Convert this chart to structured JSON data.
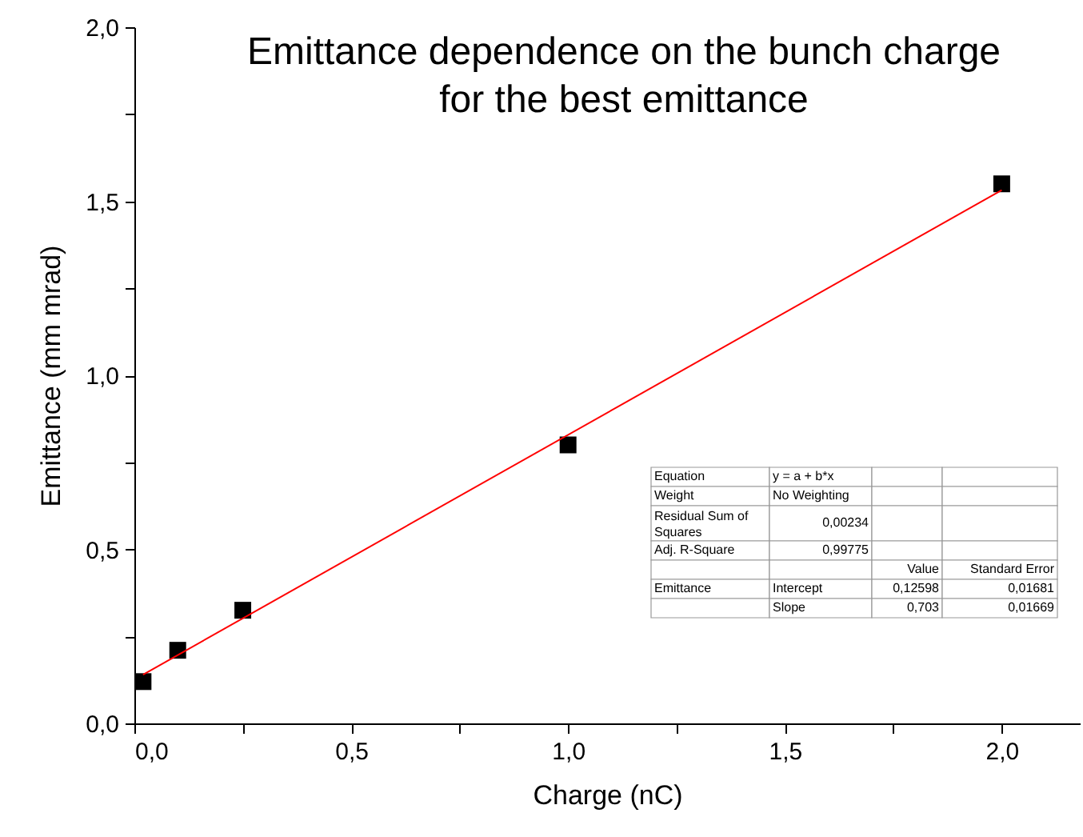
{
  "chart_data": {
    "type": "scatter",
    "title": "Emittance dependence on the bunch charge\nfor the best emittance",
    "xlabel": "Charge (nC)",
    "ylabel": "Emittance (mm mrad)",
    "series": [
      {
        "color": "#000000",
        "marker": "square",
        "x": [
          0.02,
          0.1,
          0.25,
          1.0,
          2.0
        ],
        "values": [
          0.12,
          0.21,
          0.325,
          0.8,
          1.55
        ]
      },
      {
        "type": "line",
        "color": "#ff0000",
        "line_style": "solid",
        "x": [
          0.02,
          2.0
        ],
        "values": [
          0.14,
          1.532
        ]
      }
    ],
    "xlim": [
      0,
      2.18
    ],
    "ylim": [
      0,
      2.0
    ],
    "xticks": [
      {
        "value": 0,
        "label": "0,0"
      },
      {
        "value": 0.25,
        "label": null
      },
      {
        "value": 0.5,
        "label": "0,5"
      },
      {
        "value": 0.75,
        "label": null
      },
      {
        "value": 1.0,
        "label": "1,0"
      },
      {
        "value": 1.25,
        "label": null
      },
      {
        "value": 1.5,
        "label": "1,5"
      },
      {
        "value": 1.75,
        "label": null
      },
      {
        "value": 2.0,
        "label": "2,0"
      }
    ],
    "yticks": [
      {
        "value": 0,
        "label": "0,0"
      },
      {
        "value": 0.25,
        "label": null
      },
      {
        "value": 0.5,
        "label": "0,5"
      },
      {
        "value": 0.75,
        "label": null
      },
      {
        "value": 1.0,
        "label": "1,0"
      },
      {
        "value": 1.25,
        "label": null
      },
      {
        "value": 1.5,
        "label": "1,5"
      },
      {
        "value": 1.75,
        "label": null
      },
      {
        "value": 2.0,
        "label": "2,0"
      }
    ],
    "annotations": [
      "Equation",
      "y = a + b*x",
      null,
      null,
      "Weight",
      "No Weighting",
      null,
      null,
      "Residual Sum of\nSquares",
      "0,00234",
      null,
      null,
      "Adj. R-Square",
      "0,99775",
      null,
      null,
      null,
      null,
      "Value",
      "Standard Error",
      "Emittance",
      "Intercept",
      "0,12598",
      "0,01681",
      null,
      "Slope",
      "0,703",
      "0,01669"
    ]
  }
}
